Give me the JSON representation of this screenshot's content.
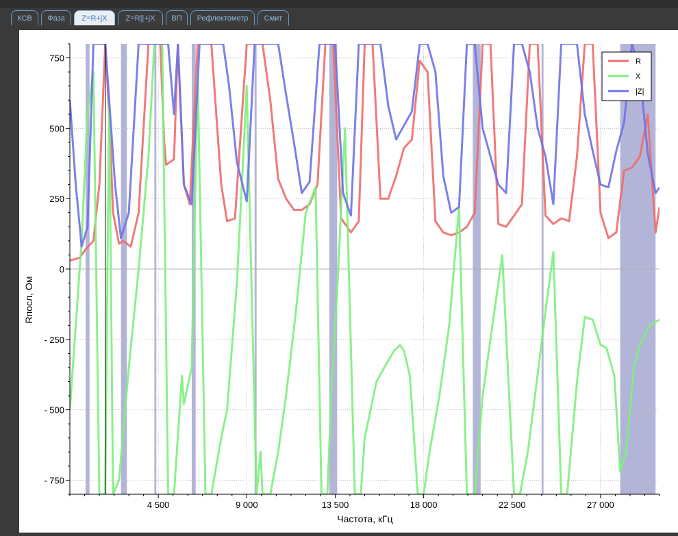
{
  "tabs": [
    {
      "label": "КСВ",
      "active": false
    },
    {
      "label": "Фаза",
      "active": false
    },
    {
      "label": "Z=R+jX",
      "active": true
    },
    {
      "label": "Z=R||+jX",
      "active": false
    },
    {
      "label": "ВП",
      "active": false
    },
    {
      "label": "Рефлектометр",
      "active": false
    },
    {
      "label": "Смит",
      "active": false
    }
  ],
  "colors": {
    "R": "#ee6b6b",
    "X": "#7df07d",
    "Z": "#6f72e6",
    "band": "#b3b5d8"
  },
  "chart_data": {
    "type": "line",
    "xlabel": "Частота, кГц",
    "ylabel": "Rпосл, Ом",
    "xlim": [
      0,
      30000
    ],
    "ylim": [
      -800,
      800
    ],
    "xticks": [
      4500,
      9000,
      13500,
      18000,
      22500,
      27000
    ],
    "xtick_labels": [
      "4 500",
      "9 000",
      "13 500",
      "18 000",
      "22 500",
      "27 000"
    ],
    "yticks": [
      750,
      500,
      250,
      0,
      -250,
      -500,
      -750
    ],
    "ytick_labels": [
      "750",
      "500",
      "250",
      "0",
      "- 250",
      "- 500",
      "- 750"
    ],
    "grid": true,
    "legend_position": "top-right",
    "marker_x": 1800,
    "bands": [
      [
        800,
        1000
      ],
      [
        2600,
        2900
      ],
      [
        4300,
        4400
      ],
      [
        6200,
        6400
      ],
      [
        9400,
        9500
      ],
      [
        13200,
        13600
      ],
      [
        20500,
        20900
      ],
      [
        24000,
        24100
      ],
      [
        28000,
        29800
      ]
    ],
    "series": [
      {
        "name": "R",
        "x": [
          0,
          500,
          800,
          1200,
          1500,
          1800,
          2000,
          2200,
          2500,
          2700,
          3100,
          3500,
          4000,
          4600,
          4800,
          4900,
          5300,
          5500,
          5800,
          6100,
          6500,
          7000,
          7200,
          7700,
          8000,
          8400,
          9000,
          9400,
          9800,
          10200,
          10600,
          11000,
          11400,
          11800,
          12200,
          12600,
          13000,
          13400,
          13800,
          14300,
          14700,
          15000,
          15400,
          15800,
          16200,
          16600,
          17000,
          17400,
          17800,
          18200,
          18600,
          19000,
          19400,
          19800,
          20200,
          20600,
          21000,
          21400,
          21800,
          22200,
          22600,
          23000,
          23400,
          23800,
          24200,
          24600,
          25000,
          25400,
          25800,
          26200,
          26600,
          27000,
          27400,
          27800,
          28200,
          28600,
          29000,
          29400,
          29800,
          30000
        ],
        "values": [
          30,
          40,
          70,
          100,
          300,
          800,
          550,
          200,
          90,
          100,
          80,
          200,
          800,
          800,
          450,
          370,
          390,
          800,
          300,
          230,
          800,
          800,
          800,
          300,
          170,
          180,
          800,
          800,
          800,
          600,
          320,
          250,
          210,
          210,
          230,
          300,
          800,
          800,
          180,
          130,
          170,
          800,
          800,
          250,
          250,
          330,
          430,
          460,
          740,
          700,
          170,
          130,
          120,
          130,
          150,
          200,
          800,
          800,
          160,
          150,
          190,
          230,
          800,
          800,
          190,
          160,
          180,
          170,
          400,
          800,
          800,
          200,
          110,
          130,
          350,
          360,
          400,
          550,
          130,
          220
        ]
      },
      {
        "name": "X",
        "x": [
          0,
          300,
          600,
          900,
          1200,
          1500,
          1800,
          2000,
          2200,
          2500,
          3000,
          3500,
          4000,
          4300,
          4700,
          5000,
          5300,
          5700,
          5800,
          6200,
          6500,
          6900,
          7200,
          7700,
          8000,
          8500,
          9000,
          9500,
          9700,
          9800,
          10200,
          10600,
          11000,
          11500,
          12000,
          12500,
          12800,
          13100,
          13300,
          13600,
          14000,
          14500,
          14800,
          15000,
          15600,
          16000,
          16500,
          16800,
          17000,
          17300,
          17700,
          18000,
          18300,
          18800,
          19300,
          19800,
          20200,
          20600,
          21000,
          21500,
          22000,
          22600,
          22900,
          23300,
          23700,
          24200,
          24600,
          25000,
          25300,
          25800,
          26200,
          26600,
          27000,
          27300,
          27700,
          28000,
          28300,
          28700,
          29000,
          29500,
          30000
        ],
        "values": [
          -500,
          -200,
          100,
          550,
          700,
          -800,
          -800,
          600,
          -800,
          -750,
          -350,
          0,
          400,
          800,
          800,
          -800,
          -800,
          -380,
          -480,
          -350,
          700,
          -800,
          -800,
          -600,
          -500,
          -50,
          650,
          -800,
          -650,
          -800,
          -800,
          -650,
          -450,
          -150,
          200,
          290,
          -800,
          -800,
          -450,
          -80,
          500,
          -800,
          -800,
          -600,
          -400,
          -350,
          -290,
          -270,
          -290,
          -380,
          -800,
          -800,
          -650,
          -450,
          -200,
          220,
          -800,
          -800,
          -450,
          -200,
          50,
          -800,
          -800,
          -650,
          -430,
          -150,
          60,
          -800,
          -800,
          -400,
          -170,
          -180,
          -270,
          -280,
          -380,
          -720,
          -650,
          -350,
          -270,
          -200,
          -180
        ]
      },
      {
        "name": "|Z|",
        "x": [
          0,
          300,
          600,
          900,
          1200,
          1500,
          1800,
          2000,
          2300,
          2600,
          3000,
          3500,
          4000,
          4600,
          5000,
          5300,
          5500,
          5800,
          6200,
          6600,
          7000,
          7400,
          7800,
          8100,
          8500,
          9000,
          9400,
          9800,
          10200,
          10600,
          11000,
          11400,
          11800,
          12200,
          12700,
          13000,
          13500,
          13900,
          14300,
          14700,
          15000,
          15400,
          15800,
          16200,
          16600,
          17000,
          17400,
          17800,
          18200,
          18600,
          19000,
          19400,
          19800,
          20200,
          20600,
          21000,
          21400,
          21800,
          22200,
          22600,
          23000,
          23400,
          23800,
          24200,
          24600,
          25000,
          25400,
          25800,
          26200,
          26600,
          27000,
          27400,
          27800,
          28200,
          28600,
          29000,
          29400,
          29800,
          30000
        ],
        "values": [
          600,
          300,
          80,
          150,
          800,
          800,
          800,
          600,
          300,
          110,
          200,
          800,
          800,
          800,
          800,
          550,
          800,
          300,
          230,
          800,
          800,
          800,
          800,
          650,
          380,
          240,
          800,
          800,
          800,
          800,
          620,
          450,
          270,
          310,
          800,
          800,
          800,
          270,
          190,
          800,
          800,
          800,
          800,
          580,
          460,
          510,
          560,
          800,
          800,
          700,
          330,
          200,
          220,
          800,
          800,
          500,
          400,
          300,
          270,
          800,
          800,
          700,
          500,
          400,
          230,
          800,
          800,
          800,
          550,
          420,
          300,
          290,
          420,
          520,
          800,
          700,
          410,
          270,
          290
        ]
      }
    ]
  }
}
